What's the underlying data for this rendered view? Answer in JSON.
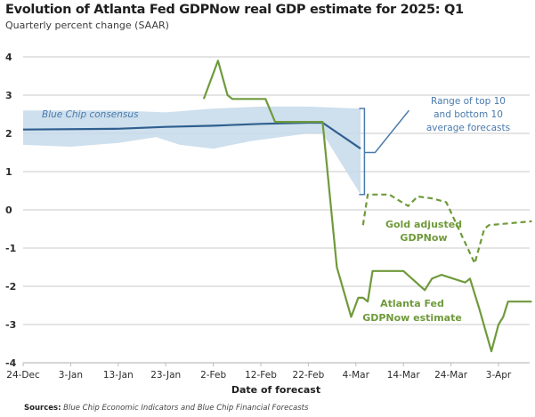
{
  "header": {
    "title": "Evolution of Atlanta Fed GDPNow real GDP estimate for 2025: Q1",
    "subtitle": "Quarterly percent change (SAAR)"
  },
  "footer": {
    "source_label": "Sources:",
    "source_text": "Blue Chip Economic Indicators and Blue Chip Financial Forecasts"
  },
  "chart_data": {
    "type": "line",
    "title": "Evolution of Atlanta Fed GDPNow real GDP estimate for 2025: Q1",
    "subtitle": "Quarterly percent change (SAAR)",
    "xlabel": "Date of forecast",
    "ylabel": "",
    "x_unit": "days since 24-Dec-2024",
    "xlim": [
      0,
      114
    ],
    "ylim": [
      -4,
      4
    ],
    "grid": true,
    "x_ticks": [
      {
        "day": 0,
        "label": "24-Dec"
      },
      {
        "day": 10,
        "label": "3-Jan"
      },
      {
        "day": 20,
        "label": "13-Jan"
      },
      {
        "day": 30,
        "label": "23-Jan"
      },
      {
        "day": 40,
        "label": "2-Feb"
      },
      {
        "day": 50,
        "label": "12-Feb"
      },
      {
        "day": 60,
        "label": "22-Feb"
      },
      {
        "day": 70,
        "label": "4-Mar"
      },
      {
        "day": 80,
        "label": "14-Mar"
      },
      {
        "day": 90,
        "label": "24-Mar"
      },
      {
        "day": 100,
        "label": "3-Apr"
      }
    ],
    "y_ticks": [
      4,
      3,
      2,
      1,
      0,
      -1,
      -2,
      -3,
      -4
    ],
    "series": [
      {
        "name": "Blue Chip consensus",
        "style": "solid",
        "color": "#2f5f8f",
        "points": [
          [
            0,
            2.1
          ],
          [
            20,
            2.12
          ],
          [
            30,
            2.17
          ],
          [
            40,
            2.2
          ],
          [
            50,
            2.25
          ],
          [
            60,
            2.28
          ],
          [
            63,
            2.28
          ],
          [
            71,
            1.6
          ]
        ]
      },
      {
        "name": "Range of top 10 and bottom 10 average forecasts",
        "style": "band",
        "color": "#c5d9ea",
        "upper": [
          [
            0,
            2.6
          ],
          [
            20,
            2.6
          ],
          [
            30,
            2.55
          ],
          [
            40,
            2.65
          ],
          [
            50,
            2.7
          ],
          [
            60,
            2.7
          ],
          [
            71,
            2.65
          ]
        ],
        "lower": [
          [
            0,
            1.7
          ],
          [
            10,
            1.65
          ],
          [
            20,
            1.75
          ],
          [
            28,
            1.9
          ],
          [
            33,
            1.7
          ],
          [
            40,
            1.6
          ],
          [
            48,
            1.8
          ],
          [
            60,
            2.0
          ],
          [
            63,
            2.0
          ],
          [
            71,
            0.4
          ]
        ]
      },
      {
        "name": "Atlanta Fed GDPNow estimate",
        "style": "solid",
        "color": "#6f9a3b",
        "points": [
          [
            38,
            2.9
          ],
          [
            41,
            3.9
          ],
          [
            43,
            3.0
          ],
          [
            44,
            2.9
          ],
          [
            51,
            2.9
          ],
          [
            53,
            2.3
          ],
          [
            63,
            2.3
          ],
          [
            66,
            -1.5
          ],
          [
            69,
            -2.8
          ],
          [
            70.5,
            -2.3
          ],
          [
            71.5,
            -2.3
          ],
          [
            72.5,
            -2.4
          ],
          [
            73.5,
            -1.6
          ],
          [
            80,
            -1.6
          ],
          [
            84.5,
            -2.1
          ],
          [
            86,
            -1.8
          ],
          [
            88,
            -1.7
          ],
          [
            93,
            -1.9
          ],
          [
            94,
            -1.8
          ],
          [
            96,
            -2.6
          ],
          [
            98.5,
            -3.7
          ],
          [
            100,
            -3.0
          ],
          [
            101,
            -2.8
          ],
          [
            102,
            -2.4
          ],
          [
            107,
            -2.4
          ]
        ]
      },
      {
        "name": "Gold adjusted GDPNow",
        "style": "dashed",
        "color": "#6f9a3b",
        "points": [
          [
            71.5,
            -0.4
          ],
          [
            72.5,
            0.4
          ],
          [
            77,
            0.4
          ],
          [
            81,
            0.1
          ],
          [
            83,
            0.35
          ],
          [
            86,
            0.3
          ],
          [
            89,
            0.2
          ],
          [
            95,
            -1.4
          ],
          [
            97,
            -0.5
          ],
          [
            98,
            -0.4
          ],
          [
            107,
            -0.3
          ]
        ]
      }
    ],
    "annotations": [
      {
        "text": "Blue Chip consensus",
        "target": "Blue Chip consensus"
      },
      {
        "text": [
          "Range of top 10",
          "and bottom 10",
          "average forecasts"
        ],
        "target": "band"
      },
      {
        "text": [
          "Gold adjusted",
          "GDPNow"
        ],
        "target": "Gold adjusted GDPNow"
      },
      {
        "text": [
          "Atlanta Fed",
          "GDPNow estimate"
        ],
        "target": "Atlanta Fed GDPNow estimate"
      }
    ]
  }
}
